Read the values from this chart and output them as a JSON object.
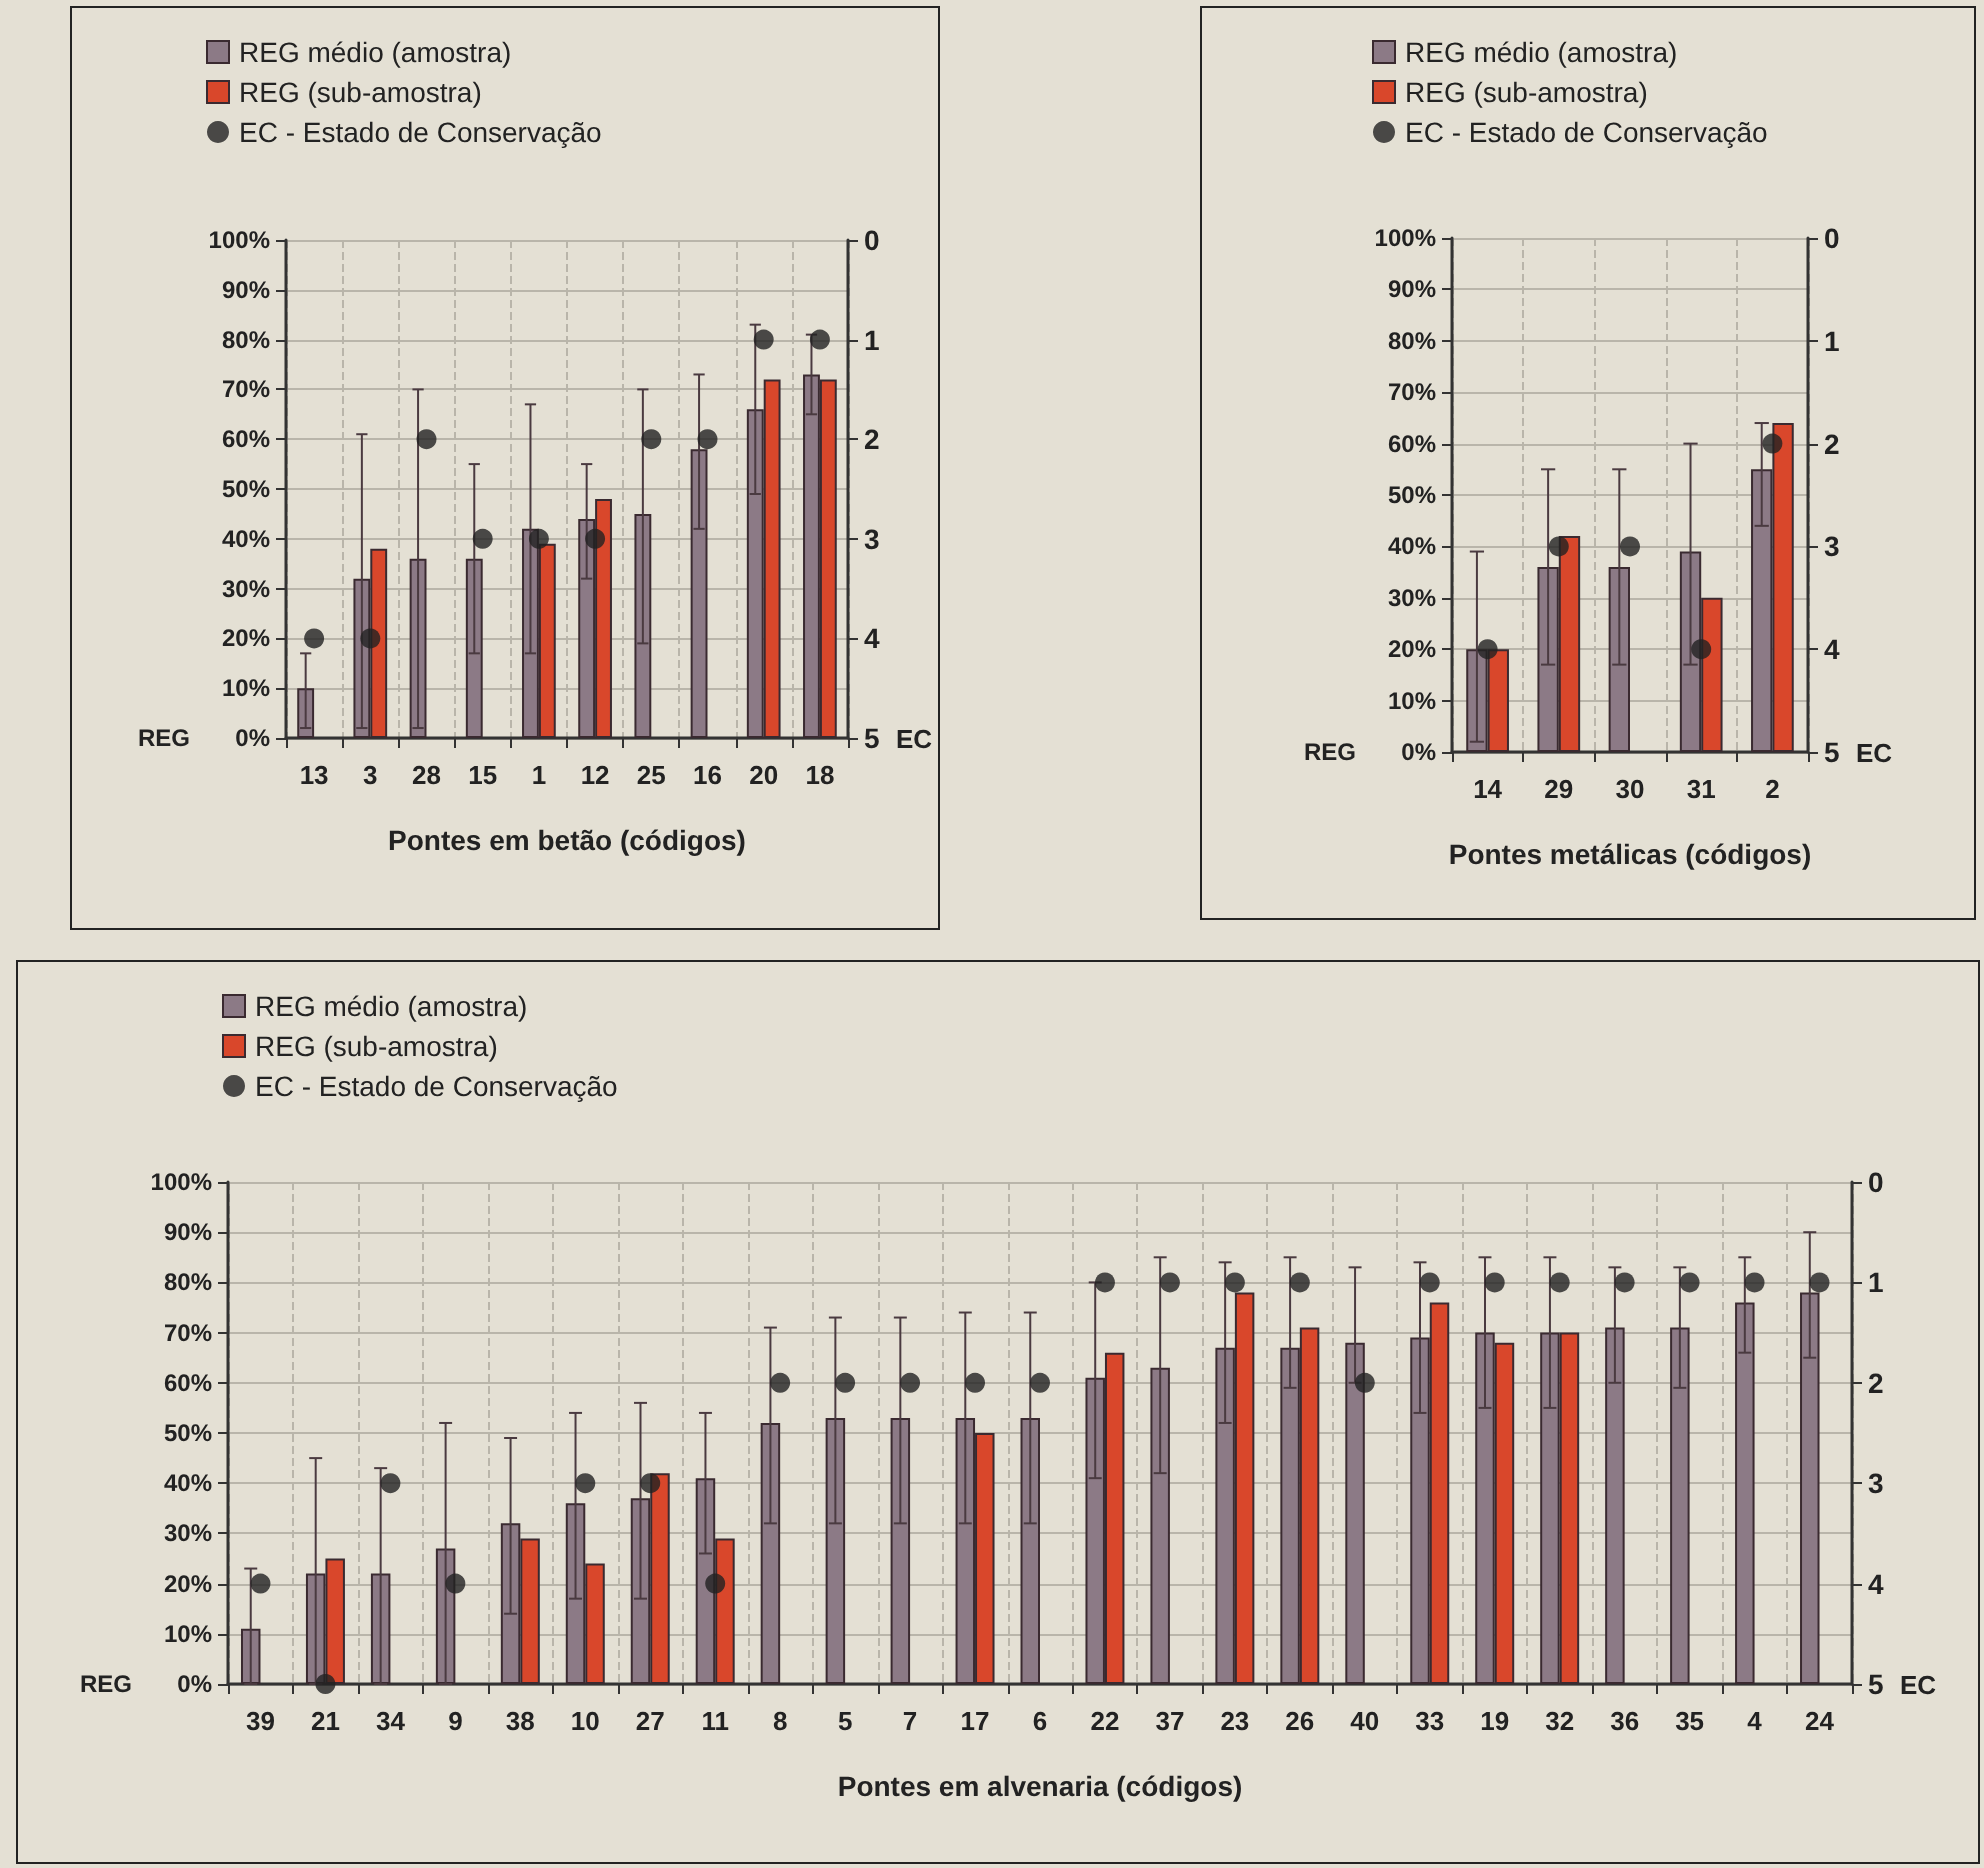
{
  "chart_data": [
    {
      "type": "bar",
      "xlabel": "Pontes em betão (códigos)",
      "ylabel": "REG",
      "y2label": "EC",
      "legend": "top left",
      "grid": true,
      "marker": "circle",
      "categories": [
        "13",
        "3",
        "28",
        "15",
        "1",
        "12",
        "25",
        "16",
        "20",
        "18"
      ],
      "ylim": [
        0,
        100
      ],
      "yticks": [
        {
          "value": 0,
          "label": "0%"
        },
        {
          "value": 10,
          "label": "10%"
        },
        {
          "value": 20,
          "label": "20%"
        },
        {
          "value": 30,
          "label": "30%"
        },
        {
          "value": 40,
          "label": "40%"
        },
        {
          "value": 50,
          "label": "50%"
        },
        {
          "value": 60,
          "label": "60%"
        },
        {
          "value": 70,
          "label": "70%"
        },
        {
          "value": 80,
          "label": "80%"
        },
        {
          "value": 90,
          "label": "90%"
        },
        {
          "value": 100,
          "label": "100%"
        }
      ],
      "y2lim": [
        5,
        0
      ],
      "y2ticks": [
        0,
        1,
        2,
        3,
        4,
        5
      ],
      "series": [
        {
          "name": "REG médio (amostra)",
          "color": "#8c7a86",
          "values": [
            10,
            32,
            36,
            36,
            42,
            44,
            45,
            58,
            66,
            73
          ],
          "errors": [
            [
              2,
              17
            ],
            [
              2,
              61
            ],
            [
              2,
              70
            ],
            [
              17,
              55
            ],
            [
              17,
              67
            ],
            [
              32,
              55
            ],
            [
              19,
              70
            ],
            [
              42,
              73
            ],
            [
              49,
              83
            ],
            [
              65,
              81
            ]
          ]
        },
        {
          "name": "REG (sub-amostra)",
          "color": "#d9472b",
          "values": [
            null,
            38,
            null,
            null,
            39,
            48,
            null,
            null,
            72,
            72
          ]
        },
        {
          "name": "EC - Estado de Conservação",
          "type": "scatter",
          "axis": "y2",
          "color": "#222222",
          "values": [
            4,
            4,
            2,
            3,
            3,
            3,
            2,
            2,
            1,
            1
          ]
        }
      ]
    },
    {
      "type": "bar",
      "xlabel": "Pontes metálicas (códigos)",
      "ylabel": "REG",
      "y2label": "EC",
      "legend": "top left",
      "grid": true,
      "marker": "circle",
      "categories": [
        "14",
        "29",
        "30",
        "31",
        "2"
      ],
      "ylim": [
        0,
        100
      ],
      "yticks": [
        {
          "value": 0,
          "label": "0%"
        },
        {
          "value": 10,
          "label": "10%"
        },
        {
          "value": 20,
          "label": "20%"
        },
        {
          "value": 30,
          "label": "30%"
        },
        {
          "value": 40,
          "label": "40%"
        },
        {
          "value": 50,
          "label": "50%"
        },
        {
          "value": 60,
          "label": "60%"
        },
        {
          "value": 70,
          "label": "70%"
        },
        {
          "value": 80,
          "label": "80%"
        },
        {
          "value": 90,
          "label": "90%"
        },
        {
          "value": 100,
          "label": "100%"
        }
      ],
      "y2lim": [
        5,
        0
      ],
      "y2ticks": [
        0,
        1,
        2,
        3,
        4,
        5
      ],
      "series": [
        {
          "name": "REG médio (amostra)",
          "color": "#8c7a86",
          "values": [
            20,
            36,
            36,
            39,
            55
          ],
          "errors": [
            [
              2,
              39
            ],
            [
              17,
              55
            ],
            [
              17,
              55
            ],
            [
              17,
              60
            ],
            [
              44,
              64
            ]
          ]
        },
        {
          "name": "REG (sub-amostra)",
          "color": "#d9472b",
          "values": [
            20,
            42,
            null,
            30,
            64
          ]
        },
        {
          "name": "EC - Estado de Conservação",
          "type": "scatter",
          "axis": "y2",
          "color": "#222222",
          "values": [
            4,
            3,
            3,
            4,
            2
          ]
        }
      ]
    },
    {
      "type": "bar",
      "xlabel": "Pontes em alvenaria (códigos)",
      "ylabel": "REG",
      "y2label": "EC",
      "legend": "top left",
      "grid": true,
      "marker": "circle",
      "categories": [
        "39",
        "21",
        "34",
        "9",
        "38",
        "10",
        "27",
        "11",
        "8",
        "5",
        "7",
        "17",
        "6",
        "22",
        "37",
        "23",
        "26",
        "40",
        "33",
        "19",
        "32",
        "36",
        "35",
        "4",
        "24"
      ],
      "ylim": [
        0,
        100
      ],
      "yticks": [
        {
          "value": 0,
          "label": "0%"
        },
        {
          "value": 10,
          "label": "10%"
        },
        {
          "value": 20,
          "label": "20%"
        },
        {
          "value": 30,
          "label": "30%"
        },
        {
          "value": 40,
          "label": "40%"
        },
        {
          "value": 50,
          "label": "50%"
        },
        {
          "value": 60,
          "label": "60%"
        },
        {
          "value": 70,
          "label": "70%"
        },
        {
          "value": 80,
          "label": "80%"
        },
        {
          "value": 90,
          "label": "90%"
        },
        {
          "value": 100,
          "label": "100%"
        }
      ],
      "y2lim": [
        5,
        0
      ],
      "y2ticks": [
        0,
        1,
        2,
        3,
        4,
        5
      ],
      "series": [
        {
          "name": "REG médio (amostra)",
          "color": "#8c7a86",
          "values": [
            11,
            22,
            22,
            27,
            32,
            36,
            37,
            41,
            52,
            53,
            53,
            53,
            53,
            61,
            63,
            67,
            67,
            68,
            69,
            70,
            70,
            71,
            71,
            76,
            78
          ],
          "errors": [
            [
              0,
              23
            ],
            [
              0,
              45
            ],
            [
              0,
              43
            ],
            [
              0,
              52
            ],
            [
              14,
              49
            ],
            [
              17,
              54
            ],
            [
              17,
              56
            ],
            [
              26,
              54
            ],
            [
              32,
              71
            ],
            [
              32,
              73
            ],
            [
              32,
              73
            ],
            [
              32,
              74
            ],
            [
              32,
              74
            ],
            [
              41,
              80
            ],
            [
              42,
              85
            ],
            [
              52,
              84
            ],
            [
              59,
              85
            ],
            [
              60,
              83
            ],
            [
              54,
              84
            ],
            [
              55,
              85
            ],
            [
              55,
              85
            ],
            [
              60,
              83
            ],
            [
              59,
              83
            ],
            [
              66,
              85
            ],
            [
              65,
              90
            ]
          ]
        },
        {
          "name": "REG (sub-amostra)",
          "color": "#d9472b",
          "values": [
            null,
            25,
            null,
            null,
            29,
            24,
            42,
            29,
            null,
            null,
            null,
            50,
            null,
            66,
            null,
            78,
            71,
            null,
            76,
            68,
            70,
            null,
            null,
            null,
            null
          ]
        },
        {
          "name": "EC - Estado de Conservação",
          "type": "scatter",
          "axis": "y2",
          "color": "#222222",
          "values": [
            4,
            5,
            3,
            4,
            null,
            3,
            3,
            4,
            2,
            2,
            2,
            2,
            2,
            1,
            1,
            1,
            1,
            2,
            1,
            1,
            1,
            1,
            1,
            1,
            1
          ]
        }
      ]
    }
  ]
}
